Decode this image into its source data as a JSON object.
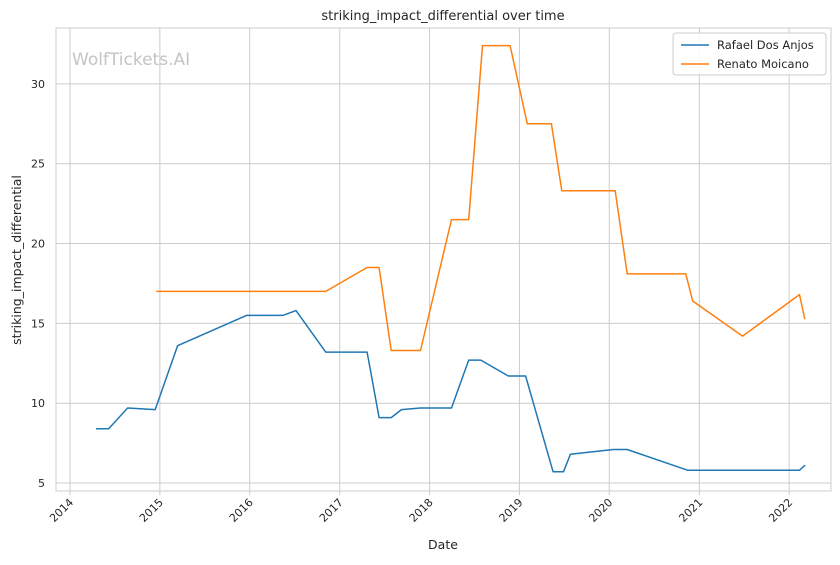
{
  "chart_data": {
    "type": "line",
    "title": "striking_impact_differential over time",
    "xlabel": "Date",
    "ylabel": "striking_impact_differential",
    "watermark": "WolfTickets.AI",
    "x_range": [
      "2013-11-05",
      "2022-06-20"
    ],
    "ylim": [
      4.5,
      33.5
    ],
    "x_ticks": [
      "2014",
      "2015",
      "2016",
      "2017",
      "2018",
      "2019",
      "2020",
      "2021",
      "2022"
    ],
    "y_ticks": [
      5,
      10,
      15,
      20,
      25,
      30
    ],
    "grid": true,
    "legend_position": "top-right",
    "series": [
      {
        "name": "Rafael Dos Anjos",
        "color": "#1f77b4",
        "points": [
          [
            "2014-04-19",
            8.4
          ],
          [
            "2014-06-07",
            8.4
          ],
          [
            "2014-08-23",
            9.7
          ],
          [
            "2014-12-13",
            9.6
          ],
          [
            "2015-03-14",
            13.6
          ],
          [
            "2015-12-19",
            15.5
          ],
          [
            "2016-05-15",
            15.5
          ],
          [
            "2016-07-07",
            15.8
          ],
          [
            "2016-11-05",
            13.2
          ],
          [
            "2017-04-22",
            13.2
          ],
          [
            "2017-06-10",
            9.1
          ],
          [
            "2017-07-29",
            9.1
          ],
          [
            "2017-09-09",
            9.6
          ],
          [
            "2017-11-25",
            9.7
          ],
          [
            "2018-03-31",
            9.7
          ],
          [
            "2018-06-09",
            12.7
          ],
          [
            "2018-07-28",
            12.7
          ],
          [
            "2018-11-17",
            11.7
          ],
          [
            "2019-01-26",
            11.7
          ],
          [
            "2019-05-18",
            5.7
          ],
          [
            "2019-06-29",
            5.7
          ],
          [
            "2019-07-27",
            6.8
          ],
          [
            "2020-01-18",
            7.1
          ],
          [
            "2020-03-14",
            7.1
          ],
          [
            "2020-11-14",
            5.8
          ],
          [
            "2022-02-12",
            5.8
          ],
          [
            "2022-03-05",
            6.1
          ]
        ]
      },
      {
        "name": "Renato Moicano",
        "color": "#ff7f0e",
        "points": [
          [
            "2014-12-20",
            17.0
          ],
          [
            "2016-11-05",
            17.0
          ],
          [
            "2017-04-22",
            18.5
          ],
          [
            "2017-06-10",
            18.5
          ],
          [
            "2017-07-29",
            13.3
          ],
          [
            "2017-11-25",
            13.3
          ],
          [
            "2018-03-31",
            21.5
          ],
          [
            "2018-06-09",
            21.5
          ],
          [
            "2018-08-04",
            32.4
          ],
          [
            "2018-11-24",
            32.4
          ],
          [
            "2019-02-02",
            27.5
          ],
          [
            "2019-05-11",
            27.5
          ],
          [
            "2019-06-22",
            23.3
          ],
          [
            "2020-01-25",
            23.3
          ],
          [
            "2020-03-14",
            18.1
          ],
          [
            "2020-11-07",
            18.1
          ],
          [
            "2020-12-05",
            16.4
          ],
          [
            "2021-06-26",
            14.2
          ],
          [
            "2022-02-12",
            16.8
          ],
          [
            "2022-03-05",
            15.3
          ]
        ]
      }
    ]
  }
}
